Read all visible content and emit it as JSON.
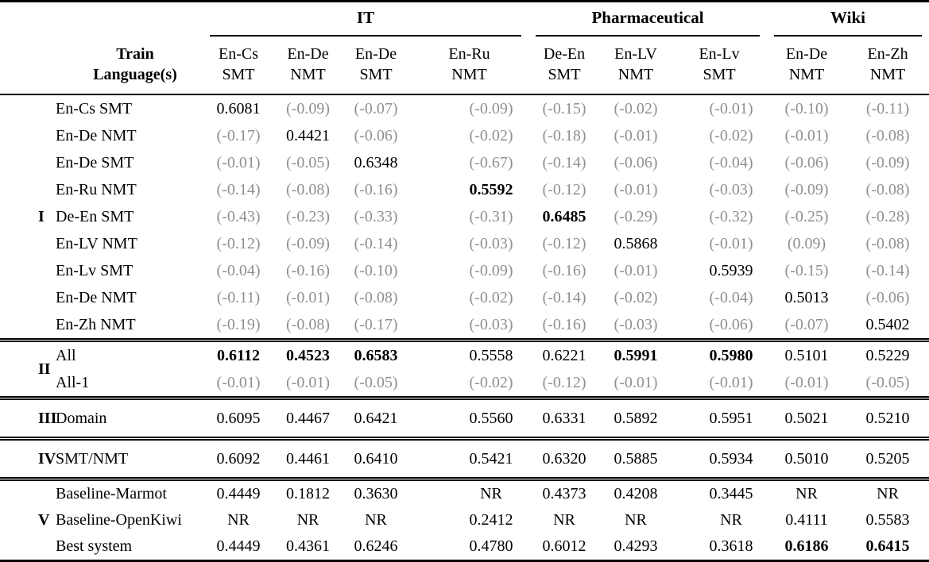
{
  "table": {
    "corner_header": {
      "line1": "Train",
      "line2": "Language(s)"
    },
    "column_groups": [
      {
        "label": "IT",
        "span": 4
      },
      {
        "label": "Pharmaceutical",
        "span": 3
      },
      {
        "label": "Wiki",
        "span": 2
      }
    ],
    "columns": [
      {
        "line1": "En-Cs",
        "line2": "SMT"
      },
      {
        "line1": "En-De",
        "line2": "NMT"
      },
      {
        "line1": "En-De",
        "line2": "SMT"
      },
      {
        "line1": "En-Ru",
        "line2": "NMT"
      },
      {
        "line1": "De-En",
        "line2": "SMT"
      },
      {
        "line1": "En-LV",
        "line2": "NMT"
      },
      {
        "line1": "En-Lv",
        "line2": "SMT"
      },
      {
        "line1": "En-De",
        "line2": "NMT"
      },
      {
        "line1": "En-Zh",
        "line2": "NMT"
      }
    ],
    "row_groups": [
      {
        "label": "I",
        "rows": [
          {
            "label": "En-Cs SMT",
            "values": [
              "0.6081",
              "(-0.09)",
              "(-0.07)",
              "(-0.09)",
              "(-0.15)",
              "(-0.02)",
              "(-0.01)",
              "(-0.10)",
              "(-0.11)"
            ],
            "bold": []
          },
          {
            "label": "En-De NMT",
            "values": [
              "(-0.17)",
              "0.4421",
              "(-0.06)",
              "(-0.02)",
              "(-0.18)",
              "(-0.01)",
              "(-0.02)",
              "(-0.01)",
              "(-0.08)"
            ],
            "bold": []
          },
          {
            "label": "En-De SMT",
            "values": [
              "(-0.01)",
              "(-0.05)",
              "0.6348",
              "(-0.67)",
              "(-0.14)",
              "(-0.06)",
              "(-0.04)",
              "(-0.06)",
              "(-0.09)"
            ],
            "bold": []
          },
          {
            "label": "En-Ru NMT",
            "values": [
              "(-0.14)",
              "(-0.08)",
              "(-0.16)",
              "0.5592",
              "(-0.12)",
              "(-0.01)",
              "(-0.03)",
              "(-0.09)",
              "(-0.08)"
            ],
            "bold": [
              3
            ]
          },
          {
            "label": "De-En SMT",
            "values": [
              "(-0.43)",
              "(-0.23)",
              "(-0.33)",
              "(-0.31)",
              "0.6485",
              "(-0.29)",
              "(-0.32)",
              "(-0.25)",
              "(-0.28)"
            ],
            "bold": [
              4
            ]
          },
          {
            "label": "En-LV NMT",
            "values": [
              "(-0.12)",
              "(-0.09)",
              "(-0.14)",
              "(-0.03)",
              "(-0.12)",
              "0.5868",
              "(-0.01)",
              "(0.09)",
              "(-0.08)"
            ],
            "bold": []
          },
          {
            "label": "En-Lv SMT",
            "values": [
              "(-0.04)",
              "(-0.16)",
              "(-0.10)",
              "(-0.09)",
              "(-0.16)",
              "(-0.01)",
              "0.5939",
              "(-0.15)",
              "(-0.14)"
            ],
            "bold": []
          },
          {
            "label": "En-De NMT",
            "values": [
              "(-0.11)",
              "(-0.01)",
              "(-0.08)",
              "(-0.02)",
              "(-0.14)",
              "(-0.02)",
              "(-0.04)",
              "0.5013",
              "(-0.06)"
            ],
            "bold": []
          },
          {
            "label": "En-Zh NMT",
            "values": [
              "(-0.19)",
              "(-0.08)",
              "(-0.17)",
              "(-0.03)",
              "(-0.16)",
              "(-0.03)",
              "(-0.06)",
              "(-0.07)",
              "0.5402"
            ],
            "bold": []
          }
        ]
      },
      {
        "label": "II",
        "rows": [
          {
            "label": "All",
            "values": [
              "0.6112",
              "0.4523",
              "0.6583",
              "0.5558",
              "0.6221",
              "0.5991",
              "0.5980",
              "0.5101",
              "0.5229"
            ],
            "bold": [
              0,
              1,
              2,
              5,
              6
            ]
          },
          {
            "label": "All-1",
            "values": [
              "(-0.01)",
              "(-0.01)",
              "(-0.05)",
              "(-0.02)",
              "(-0.12)",
              "(-0.01)",
              "(-0.01)",
              "(-0.01)",
              "(-0.05)"
            ],
            "bold": []
          }
        ]
      },
      {
        "label": "III",
        "rows": [
          {
            "label": "Domain",
            "values": [
              "0.6095",
              "0.4467",
              "0.6421",
              "0.5560",
              "0.6331",
              "0.5892",
              "0.5951",
              "0.5021",
              "0.5210"
            ],
            "bold": []
          }
        ]
      },
      {
        "label": "IV",
        "rows": [
          {
            "label": "SMT/NMT",
            "values": [
              "0.6092",
              "0.4461",
              "0.6410",
              "0.5421",
              "0.6320",
              "0.5885",
              "0.5934",
              "0.5010",
              "0.5205"
            ],
            "bold": []
          }
        ]
      },
      {
        "label": "V",
        "rows": [
          {
            "label": "Baseline-Marmot",
            "values": [
              "0.4449",
              "0.1812",
              "0.3630",
              "NR",
              "0.4373",
              "0.4208",
              "0.3445",
              "NR",
              "NR"
            ],
            "bold": []
          },
          {
            "label": "Baseline-OpenKiwi",
            "values": [
              "NR",
              "NR",
              "NR",
              "0.2412",
              "NR",
              "NR",
              "NR",
              "0.4111",
              "0.5583"
            ],
            "bold": []
          },
          {
            "label": "Best system",
            "values": [
              "0.4449",
              "0.4361",
              "0.6246",
              "0.4780",
              "0.6012",
              "0.4293",
              "0.3618",
              "0.6186",
              "0.6415"
            ],
            "bold": [
              7,
              8
            ]
          }
        ]
      }
    ]
  }
}
